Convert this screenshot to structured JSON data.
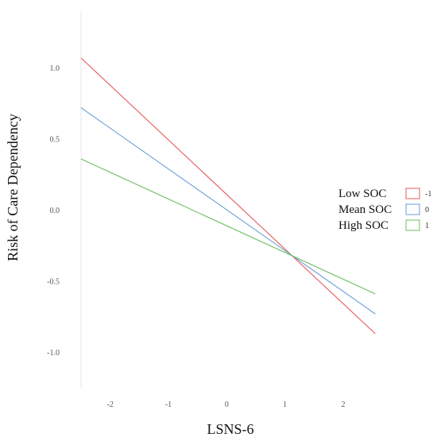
{
  "chart_data": {
    "type": "line",
    "xlabel": "LSNS-6",
    "ylabel": "Risk of Care Dependency",
    "xlim": [
      -2.5,
      2.6
    ],
    "ylim": [
      -1.25,
      1.4
    ],
    "x_ticks": [
      "-2",
      "-1",
      "0",
      "1",
      "2"
    ],
    "x_tick_values": [
      -2,
      -1,
      0,
      1,
      2
    ],
    "y_ticks": [
      "-1.0",
      "-0.5",
      "0.0",
      "0.5",
      "1.0"
    ],
    "y_tick_values": [
      -1.0,
      -0.5,
      0.0,
      0.5,
      1.0
    ],
    "grid": false,
    "legend_placement": "right",
    "series": [
      {
        "name": "Low SOC",
        "value_label": "-1",
        "color": "#e8595a",
        "x": [
          -2.5,
          2.55
        ],
        "y": [
          1.07,
          -0.87
        ]
      },
      {
        "name": "Mean SOC",
        "value_label": "0",
        "color": "#6a9ed8",
        "x": [
          -2.5,
          2.55
        ],
        "y": [
          0.72,
          -0.73
        ]
      },
      {
        "name": "High SOC",
        "value_label": "1",
        "color": "#6cbf5f",
        "x": [
          -2.5,
          2.55
        ],
        "y": [
          0.36,
          -0.59
        ]
      }
    ]
  }
}
